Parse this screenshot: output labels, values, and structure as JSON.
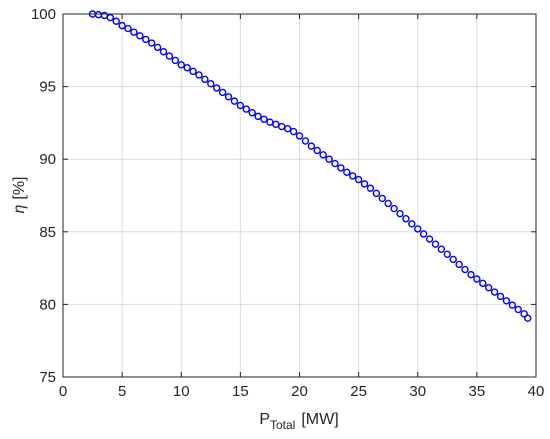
{
  "chart_data": {
    "type": "scatter",
    "xlabel": "P",
    "xlabel_subscript": "Total",
    "xlabel_unit": "[MW]",
    "ylabel_symbol": "η",
    "ylabel_unit": "[%]",
    "xlim": [
      0,
      40
    ],
    "ylim": [
      75,
      100
    ],
    "xticks": [
      "0",
      "5",
      "10",
      "15",
      "20",
      "25",
      "30",
      "35",
      "40"
    ],
    "yticks": [
      "75",
      "80",
      "85",
      "90",
      "95",
      "100"
    ],
    "grid": true,
    "marker": "circle-open",
    "color": "#0000ff",
    "series": [
      {
        "x": [
          2.5,
          3.0,
          3.5,
          4.0,
          4.5,
          5.0,
          5.5,
          6.0,
          6.5,
          7.0,
          7.5,
          8.0,
          8.5,
          9.0,
          9.5,
          10.0,
          10.5,
          11.0,
          11.5,
          12.0,
          12.5,
          13.0,
          13.5,
          14.0,
          14.5,
          15.0,
          15.5,
          16.0,
          16.5,
          17.0,
          17.5,
          18.0,
          18.5,
          19.0,
          19.5,
          20.0,
          20.5,
          21.0,
          21.5,
          22.0,
          22.5,
          23.0,
          23.5,
          24.0,
          24.5,
          25.0,
          25.5,
          26.0,
          26.5,
          27.0,
          27.5,
          28.0,
          28.5,
          29.0,
          29.5,
          30.0,
          30.5,
          31.0,
          31.5,
          32.0,
          32.5,
          33.0,
          33.5,
          34.0,
          34.5,
          35.0,
          35.5,
          36.0,
          36.5,
          37.0,
          37.5,
          38.0,
          38.5,
          39.0,
          39.3
        ],
        "y": [
          100.0,
          99.95,
          99.9,
          99.75,
          99.5,
          99.2,
          99.0,
          98.75,
          98.5,
          98.25,
          98.0,
          97.7,
          97.4,
          97.1,
          96.8,
          96.5,
          96.3,
          96.05,
          95.8,
          95.5,
          95.2,
          94.9,
          94.6,
          94.3,
          94.0,
          93.7,
          93.45,
          93.2,
          92.95,
          92.75,
          92.55,
          92.4,
          92.25,
          92.1,
          91.9,
          91.6,
          91.25,
          90.9,
          90.6,
          90.3,
          90.0,
          89.7,
          89.4,
          89.1,
          88.85,
          88.6,
          88.3,
          88.0,
          87.65,
          87.3,
          86.95,
          86.6,
          86.25,
          85.9,
          85.55,
          85.2,
          84.85,
          84.5,
          84.15,
          83.8,
          83.45,
          83.1,
          82.75,
          82.4,
          82.05,
          81.75,
          81.45,
          81.15,
          80.85,
          80.55,
          80.25,
          79.95,
          79.65,
          79.35,
          79.05
        ]
      }
    ]
  }
}
